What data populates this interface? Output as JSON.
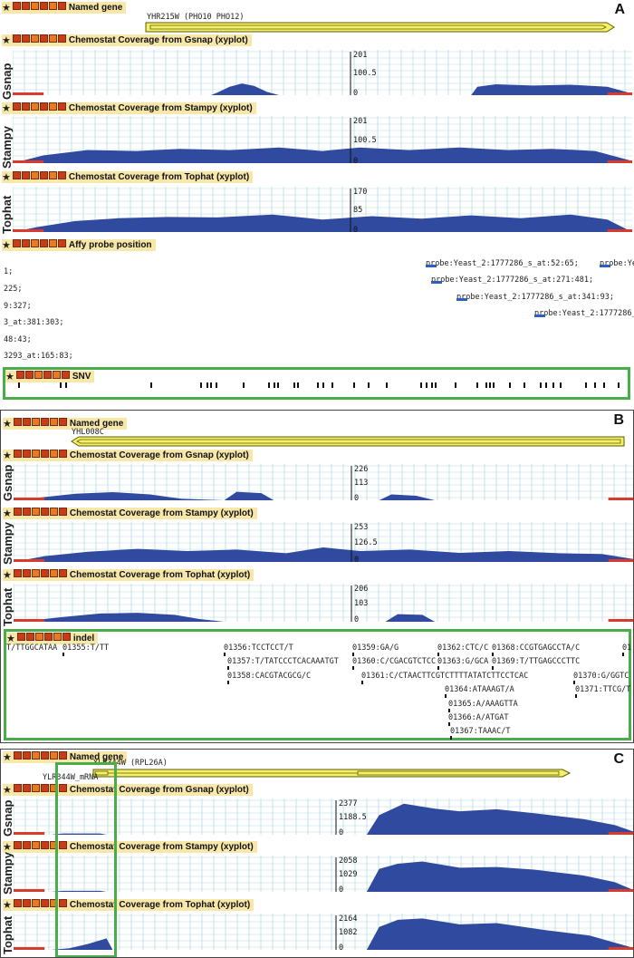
{
  "colors": {
    "coverage": "#2f4a9e",
    "edge": "#d93a2b",
    "gene_fill": "#f5f06a",
    "gene_stroke": "#5c5a00",
    "track_header": "#f7e7a8",
    "grid": "#9fd4dc",
    "highlight_box": "#49ad4a"
  },
  "icons": [
    "star-icon",
    "close-icon",
    "minus-icon",
    "config-icon",
    "edit-icon",
    "move-icon",
    "help-icon"
  ],
  "panels": [
    {
      "letter": "A",
      "gene_header": "Named gene",
      "gene_label": "YHR215W (PHO10 PHO12)",
      "tracks": [
        {
          "side": "Gsnap",
          "header": "Chemostat Coverage from Gsnap (xyplot)",
          "max": "201",
          "mid": "100.5",
          "min": "0"
        },
        {
          "side": "Stampy",
          "header": "Chemostat Coverage from Stampy (xyplot)",
          "max": "201",
          "mid": "100.5",
          "min": "0"
        },
        {
          "side": "Tophat",
          "header": "Chemostat Coverage from Tophat (xyplot)",
          "max": "170",
          "mid": "85",
          "min": "0"
        }
      ],
      "affy_header": "Affy probe position",
      "affy_left": [
        "1;",
        "225;",
        "9:327;",
        "3_at:381:303;",
        "48:43;",
        "3293_at:165:83;"
      ],
      "affy_probes": [
        "probe:Yeast_2:1777286_s_at:52:65;",
        "probe:Ye",
        "probe:Yeast_2:1777286_s_at:271:481;",
        "probe:Yeast_2:1777286_s_at:341:93;",
        "probe:Yeast_2:1777286_"
      ],
      "snv_header": "SNV"
    },
    {
      "letter": "B",
      "gene_header": "Named gene",
      "gene_label": "YHL008C",
      "tracks": [
        {
          "side": "Gsnap",
          "header": "Chemostat Coverage from Gsnap (xyplot)",
          "max": "226",
          "mid": "113",
          "min": "0"
        },
        {
          "side": "Stampy",
          "header": "Chemostat Coverage from Stampy (xyplot)",
          "max": "253",
          "mid": "126.5",
          "min": "0"
        },
        {
          "side": "Tophat",
          "header": "Chemostat Coverage from Tophat (xyplot)",
          "max": "206",
          "mid": "103",
          "min": "0"
        }
      ],
      "indel_header": "indel",
      "indels": [
        "T/TTGGCATAA",
        "01355:T/TT",
        "01356:TCCTCCT/T",
        "01357:T/TATCCCTCACAAATGT",
        "01358:CACGTACGCG/C",
        "01359:GA/G",
        "01360:C/CGACGTCTCC",
        "01361:C/CTAACTTCGTCTTTTATATCTTCCTCAC",
        "01362:CTC/C",
        "01363:G/GCA",
        "01364:ATAAAGT/A",
        "01365:A/AAAGTTA",
        "01366:A/ATGAT",
        "01367:TAAAC/T",
        "01368:CCGTGAGCCTA/C",
        "01369:T/TTGAGCCCTTC",
        "01370:G/GGTC",
        "01371:TTCG/T",
        "01"
      ]
    },
    {
      "letter": "C",
      "gene_header": "Named gene",
      "gene_label": "YLR344W (RPL26A)",
      "mrna_label": "YLR344W_mRNA",
      "tracks": [
        {
          "side": "Gsnap",
          "header": "Chemostat Coverage from Gsnap (xyplot)",
          "max": "2377",
          "mid": "1188.5",
          "min": "0"
        },
        {
          "side": "Stampy",
          "header": "Chemostat Coverage from Stampy (xyplot)",
          "max": "2058",
          "mid": "1029",
          "min": "0"
        },
        {
          "side": "Tophat",
          "header": "Chemostat Coverage from Tophat (xyplot)",
          "max": "2164",
          "mid": "1082",
          "min": "0"
        }
      ]
    }
  ]
}
